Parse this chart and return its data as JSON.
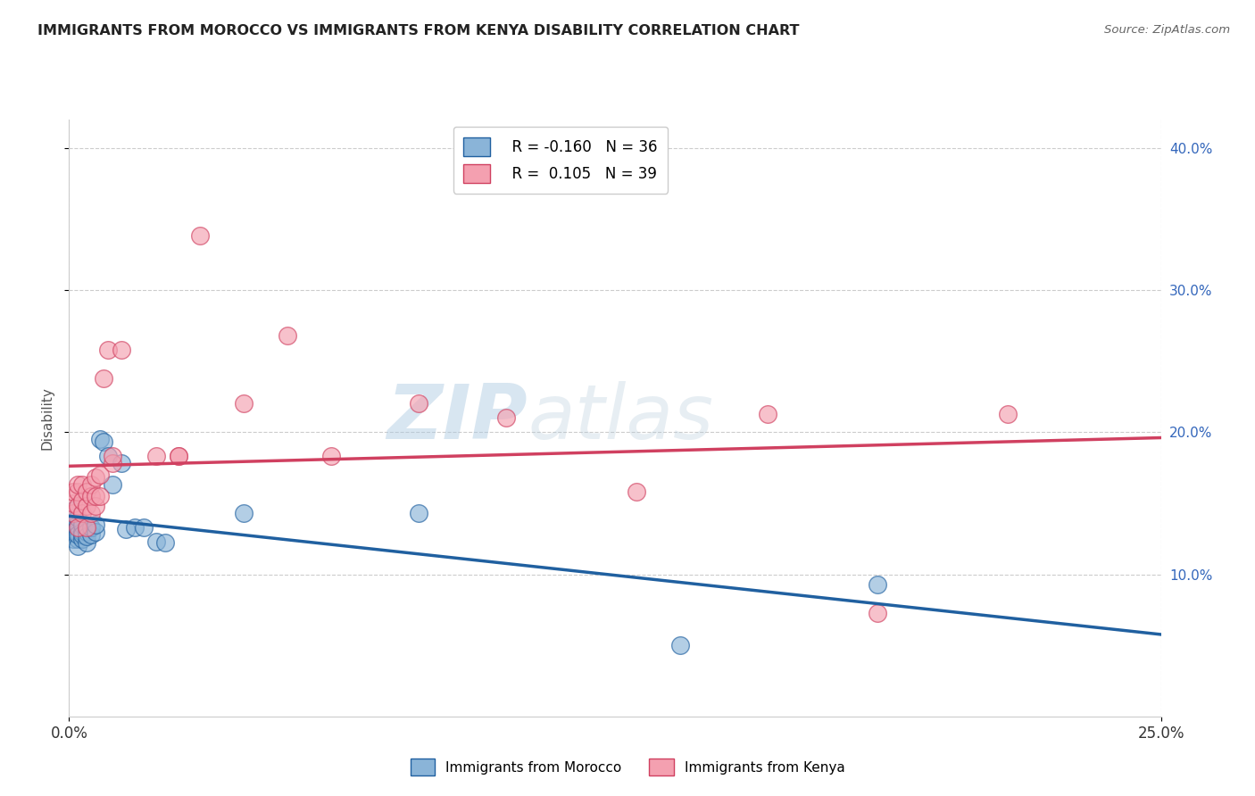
{
  "title": "IMMIGRANTS FROM MOROCCO VS IMMIGRANTS FROM KENYA DISABILITY CORRELATION CHART",
  "source": "Source: ZipAtlas.com",
  "ylabel": "Disability",
  "xlim": [
    0.0,
    0.25
  ],
  "ylim": [
    0.0,
    0.42
  ],
  "yticks": [
    0.1,
    0.2,
    0.3,
    0.4
  ],
  "ytick_labels": [
    "10.0%",
    "20.0%",
    "30.0%",
    "40.0%"
  ],
  "xticks": [
    0.0,
    0.25
  ],
  "xtick_labels": [
    "0.0%",
    "25.0%"
  ],
  "morocco_color": "#8ab4d8",
  "kenya_color": "#f4a0b0",
  "morocco_line_color": "#2060a0",
  "kenya_line_color": "#d04060",
  "morocco_R": -0.16,
  "morocco_N": 36,
  "kenya_R": 0.105,
  "kenya_N": 39,
  "watermark_zip": "ZIP",
  "watermark_atlas": "atlas",
  "background_color": "#ffffff",
  "morocco_x": [
    0.001,
    0.001,
    0.001,
    0.001,
    0.001,
    0.002,
    0.002,
    0.002,
    0.002,
    0.002,
    0.002,
    0.003,
    0.003,
    0.003,
    0.003,
    0.004,
    0.004,
    0.004,
    0.005,
    0.005,
    0.006,
    0.006,
    0.007,
    0.008,
    0.009,
    0.01,
    0.012,
    0.013,
    0.015,
    0.017,
    0.02,
    0.022,
    0.04,
    0.08,
    0.14,
    0.185
  ],
  "morocco_y": [
    0.135,
    0.14,
    0.145,
    0.125,
    0.13,
    0.13,
    0.135,
    0.14,
    0.125,
    0.12,
    0.128,
    0.125,
    0.13,
    0.135,
    0.128,
    0.122,
    0.13,
    0.127,
    0.128,
    0.133,
    0.13,
    0.135,
    0.195,
    0.193,
    0.183,
    0.163,
    0.178,
    0.132,
    0.133,
    0.133,
    0.123,
    0.122,
    0.143,
    0.143,
    0.05,
    0.093
  ],
  "kenya_x": [
    0.001,
    0.001,
    0.001,
    0.002,
    0.002,
    0.002,
    0.002,
    0.003,
    0.003,
    0.003,
    0.004,
    0.004,
    0.004,
    0.005,
    0.005,
    0.005,
    0.006,
    0.006,
    0.006,
    0.007,
    0.007,
    0.008,
    0.009,
    0.01,
    0.01,
    0.012,
    0.02,
    0.025,
    0.025,
    0.03,
    0.04,
    0.05,
    0.06,
    0.08,
    0.1,
    0.13,
    0.16,
    0.185,
    0.215
  ],
  "kenya_y": [
    0.143,
    0.15,
    0.158,
    0.133,
    0.148,
    0.158,
    0.163,
    0.143,
    0.152,
    0.163,
    0.133,
    0.148,
    0.158,
    0.143,
    0.155,
    0.163,
    0.148,
    0.155,
    0.168,
    0.155,
    0.17,
    0.238,
    0.258,
    0.178,
    0.183,
    0.258,
    0.183,
    0.183,
    0.183,
    0.338,
    0.22,
    0.268,
    0.183,
    0.22,
    0.21,
    0.158,
    0.213,
    0.073,
    0.213
  ]
}
